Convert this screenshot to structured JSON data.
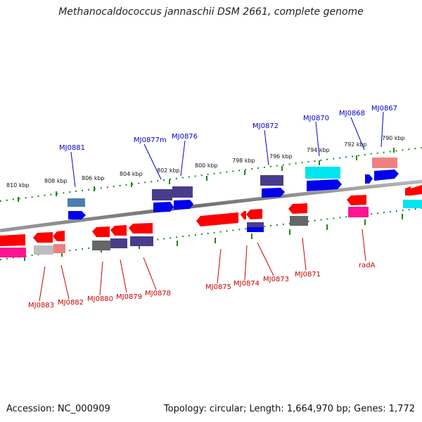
{
  "title": "Methanocaldococcus jannaschii DSM 2661, complete genome",
  "footer": {
    "accession": "Accession: NC_000909",
    "summary": "Topology: circular; Length: 1,664,970 bp; Genes: 1,772"
  },
  "colors": {
    "forward_label": "#0000cc",
    "reverse_label": "#cc0000",
    "backbone": "#8a8a8a",
    "tick": "#1a8a1a"
  },
  "kbp_labels": [
    "810 kbp",
    "808 kbp",
    "806 kbp",
    "804 kbp",
    "802 kbp",
    "800 kbp",
    "798 kbp",
    "796 kbp",
    "794 kbp",
    "792 kbp",
    "790 kbp"
  ],
  "forward_gene_labels": [
    "MJ0881",
    "MJ0877m",
    "MJ0876",
    "MJ0872",
    "MJ0870",
    "MJ0868",
    "MJ0867"
  ],
  "reverse_gene_labels": [
    "MJ0883",
    "MJ0882",
    "MJ0880",
    "MJ0879",
    "MJ0878",
    "MJ0875",
    "MJ0874",
    "MJ0873",
    "MJ0871",
    "radA"
  ]
}
